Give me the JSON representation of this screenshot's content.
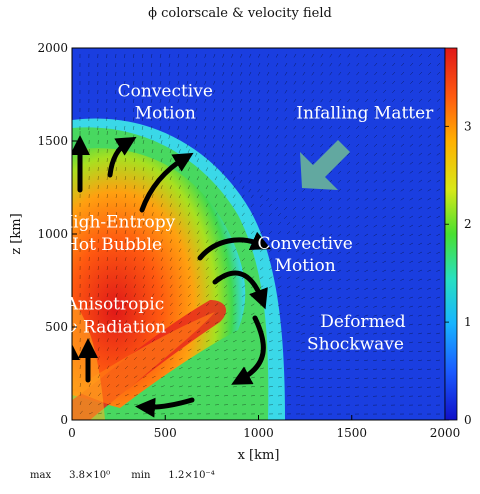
{
  "title": "ϕ colorscale & velocity field",
  "footer": {
    "max_label": "max",
    "max_value": "3.8×10⁰",
    "min_label": "min",
    "min_value": "1.2×10⁻⁴"
  },
  "chart_data": {
    "type": "heatmap",
    "title": "ϕ colorscale & velocity field",
    "xlabel": "x [km]",
    "ylabel": "z [km]",
    "xlim": [
      0,
      2000
    ],
    "ylim": [
      0,
      2000
    ],
    "xticks": [
      0,
      500,
      1000,
      1500,
      2000
    ],
    "yticks": [
      0,
      500,
      1000,
      1500,
      2000
    ],
    "colorbar": {
      "range": [
        0,
        3.8
      ],
      "ticks": [
        0,
        1,
        2,
        3
      ],
      "colors": [
        "#1010c8",
        "#1a5aff",
        "#18b4ff",
        "#28e0c0",
        "#48e030",
        "#d8e818",
        "#ffb000",
        "#ff5a10",
        "#e01818"
      ]
    },
    "colors": {
      "background_blue": "#1a3ee0",
      "cyan": "#3ad8e8",
      "green": "#40d850",
      "orange": "#ff8c14",
      "red": "#e8281c",
      "annotation_arrow": "#62a8a0"
    },
    "annotations": [
      {
        "text": "Convective",
        "x": 500,
        "z": 1740
      },
      {
        "text": "Motion",
        "x": 500,
        "z": 1620
      },
      {
        "text": "Infalling Matter",
        "x": 1570,
        "z": 1620
      },
      {
        "text": "High-Entropy",
        "x": 240,
        "z": 1035
      },
      {
        "text": "Hot Bubble",
        "x": 220,
        "z": 915
      },
      {
        "text": "Convective",
        "x": 1250,
        "z": 920
      },
      {
        "text": "Motion",
        "x": 1250,
        "z": 800
      },
      {
        "text": "Anisotropic",
        "x": 230,
        "z": 595
      },
      {
        "text": "ν Radiation",
        "x": 240,
        "z": 470
      },
      {
        "text": "Deformed",
        "x": 1560,
        "z": 500
      },
      {
        "text": "Shockwave",
        "x": 1520,
        "z": 380
      }
    ]
  }
}
